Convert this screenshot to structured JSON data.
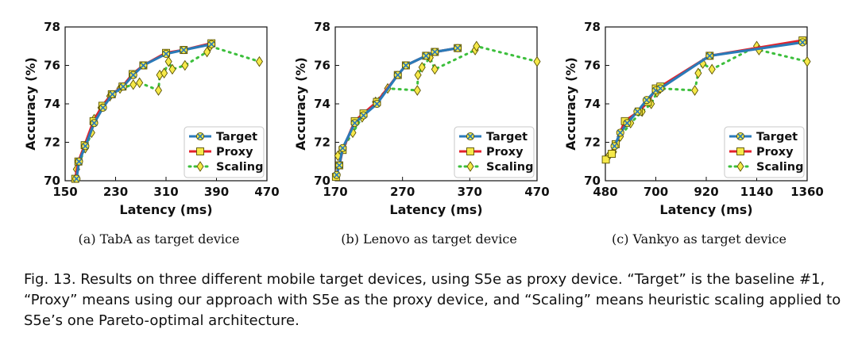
{
  "chart_data": [
    {
      "type": "line",
      "xlabel": "Latency (ms)",
      "ylabel": "Accuracy (%)",
      "xlim": [
        150,
        470
      ],
      "ylim": [
        70,
        78
      ],
      "xticks": [
        "150",
        "230",
        "310",
        "390",
        "470"
      ],
      "yticks": [
        "70",
        "72",
        "74",
        "76",
        "78"
      ],
      "grid": false,
      "legend": "bottom-right",
      "caption": "(a)  TabA as target device",
      "series": [
        {
          "name": "Target",
          "color": "#2a7ab8",
          "marker": "circle-x",
          "x": [
            168,
            172,
            182,
            196,
            210,
            225,
            242,
            258,
            274,
            310,
            338,
            382
          ],
          "y": [
            70.1,
            71.0,
            71.8,
            73.0,
            73.8,
            74.5,
            74.9,
            75.5,
            76.0,
            76.6,
            76.8,
            77.1
          ]
        },
        {
          "name": "Proxy",
          "color": "#e3212b",
          "marker": "square",
          "x": [
            166,
            171,
            181,
            195,
            209,
            224,
            241,
            257,
            274,
            310,
            338,
            382
          ],
          "y": [
            70.1,
            71.0,
            71.85,
            73.1,
            73.9,
            74.5,
            74.9,
            75.55,
            76.0,
            76.65,
            76.8,
            77.15
          ]
        },
        {
          "name": "Scaling",
          "color": "#3cbf3c",
          "marker": "diamond",
          "x": [
            168,
            182,
            192,
            196,
            207,
            221,
            237,
            258,
            268,
            298,
            300,
            307,
            314,
            320,
            340,
            375,
            380,
            458
          ],
          "y": [
            70.6,
            71.7,
            72.5,
            73.2,
            73.8,
            74.4,
            74.8,
            75.0,
            75.1,
            74.7,
            75.5,
            75.6,
            76.2,
            75.8,
            76.0,
            76.7,
            77.0,
            76.2
          ]
        }
      ]
    },
    {
      "type": "line",
      "xlabel": "Latency (ms)",
      "ylabel": "Accuracy (%)",
      "xlim": [
        170,
        470
      ],
      "ylim": [
        70,
        78
      ],
      "xticks": [
        "170",
        "270",
        "370",
        "470"
      ],
      "yticks": [
        "70",
        "72",
        "74",
        "76",
        "78"
      ],
      "grid": false,
      "legend": "bottom-right",
      "caption": "(b)  Lenovo as target device",
      "series": [
        {
          "name": "Target",
          "color": "#2a7ab8",
          "marker": "circle-x",
          "x": [
            172,
            176,
            181,
            199,
            212,
            232,
            263,
            275,
            305,
            318,
            352
          ],
          "y": [
            70.3,
            70.8,
            71.7,
            73.0,
            73.4,
            74.0,
            75.5,
            76.0,
            76.5,
            76.7,
            76.9
          ]
        },
        {
          "name": "Proxy",
          "color": "#e3212b",
          "marker": "square",
          "x": [
            171,
            176,
            181,
            199,
            212,
            232,
            263,
            275,
            305,
            318,
            352
          ],
          "y": [
            70.2,
            70.8,
            71.6,
            73.1,
            73.5,
            74.1,
            75.5,
            76.0,
            76.5,
            76.7,
            76.9
          ]
        },
        {
          "name": "Scaling",
          "color": "#3cbf3c",
          "marker": "diamond",
          "x": [
            174,
            196,
            210,
            230,
            248,
            292,
            293,
            299,
            311,
            318,
            378,
            380,
            470
          ],
          "y": [
            71.3,
            72.5,
            73.3,
            74.1,
            74.8,
            74.7,
            75.5,
            75.9,
            76.4,
            75.8,
            76.8,
            77.0,
            76.2
          ]
        }
      ]
    },
    {
      "type": "line",
      "xlabel": "Latency (ms)",
      "ylabel": "Accuracy (%)",
      "xlim": [
        480,
        1360
      ],
      "ylim": [
        70,
        78
      ],
      "xticks": [
        "480",
        "700",
        "920",
        "1140",
        "1360"
      ],
      "yticks": [
        "70",
        "72",
        "74",
        "76",
        "78"
      ],
      "grid": false,
      "legend": "bottom-right",
      "caption": "(c)  Vankyo as target device",
      "series": [
        {
          "name": "Target",
          "color": "#2a7ab8",
          "marker": "circle-x",
          "x": [
            520,
            545,
            575,
            620,
            660,
            700,
            720,
            935,
            1340
          ],
          "y": [
            71.8,
            72.5,
            73.0,
            73.6,
            74.2,
            74.7,
            74.8,
            76.5,
            77.2
          ]
        },
        {
          "name": "Proxy",
          "color": "#e3212b",
          "marker": "square",
          "x": [
            482,
            508,
            525,
            565,
            625,
            665,
            700,
            720,
            935,
            1340
          ],
          "y": [
            71.1,
            71.4,
            71.9,
            73.1,
            73.6,
            74.1,
            74.8,
            74.9,
            76.5,
            77.3
          ]
        },
        {
          "name": "Scaling",
          "color": "#3cbf3c",
          "marker": "diamond",
          "x": [
            495,
            515,
            545,
            590,
            640,
            680,
            705,
            720,
            870,
            885,
            905,
            945,
            1140,
            1150,
            1360
          ],
          "y": [
            71.3,
            71.5,
            72.3,
            73.0,
            73.6,
            74.0,
            74.6,
            74.8,
            74.7,
            75.6,
            76.1,
            75.8,
            77.0,
            76.8,
            76.2
          ]
        }
      ]
    }
  ],
  "figure_caption": "Fig. 13.  Results on three different mobile target devices, using S5e as proxy device. “Target” is the baseline #1, “Proxy” means using our approach with S5e as the proxy device, and “Scaling” means heuristic scaling applied to S5e’s one Pareto-optimal architecture."
}
